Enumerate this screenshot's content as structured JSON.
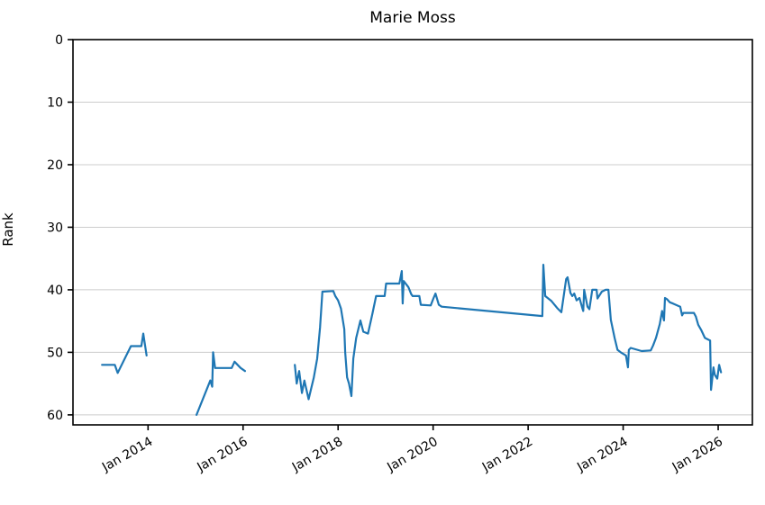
{
  "figure": {
    "title": "Marie Moss"
  },
  "chart_data": {
    "type": "line",
    "title": "Marie Moss",
    "xlabel": "",
    "ylabel": "Rank",
    "y_axis_inverted": true,
    "legend": "none",
    "grid": "horizontal-only",
    "grid_color": "#cccccc",
    "line_color": "#1f77b4",
    "spine_color": "#000000",
    "xlim": [
      2012.42,
      2026.72
    ],
    "ylim": [
      0,
      61.6
    ],
    "x_ticks": [
      {
        "year": 2014,
        "label": "Jan 2014"
      },
      {
        "year": 2016,
        "label": "Jan 2016"
      },
      {
        "year": 2018,
        "label": "Jan 2018"
      },
      {
        "year": 2020,
        "label": "Jan 2020"
      },
      {
        "year": 2022,
        "label": "Jan 2022"
      },
      {
        "year": 2024,
        "label": "Jan 2024"
      },
      {
        "year": 2026,
        "label": "Jan 2026"
      }
    ],
    "y_ticks": [
      {
        "value": 0,
        "label": "0"
      },
      {
        "value": 10,
        "label": "10"
      },
      {
        "value": 20,
        "label": "20"
      },
      {
        "value": 30,
        "label": "30"
      },
      {
        "value": 40,
        "label": "40"
      },
      {
        "value": 50,
        "label": "50"
      },
      {
        "value": 60,
        "label": "60"
      }
    ],
    "series": [
      {
        "name": "Marie Moss rank",
        "x_unit": "decimal-year",
        "segments": [
          [
            [
              2013.03,
              52
            ],
            [
              2013.3,
              52
            ],
            [
              2013.36,
              53.3
            ],
            [
              2013.64,
              49
            ],
            [
              2013.86,
              49
            ],
            [
              2013.9,
              47
            ],
            [
              2013.97,
              50.5
            ]
          ],
          [
            [
              2015.02,
              60
            ],
            [
              2015.31,
              54.5
            ],
            [
              2015.35,
              55.5
            ],
            [
              2015.37,
              50
            ],
            [
              2015.41,
              52.5
            ],
            [
              2015.76,
              52.5
            ],
            [
              2015.82,
              51.5
            ],
            [
              2015.95,
              52.5
            ],
            [
              2016.04,
              53
            ]
          ],
          [
            [
              2017.09,
              52
            ],
            [
              2017.13,
              55
            ],
            [
              2017.18,
              53
            ],
            [
              2017.24,
              56.5
            ],
            [
              2017.29,
              54.5
            ],
            [
              2017.38,
              57.5
            ],
            [
              2017.49,
              54
            ],
            [
              2017.56,
              51
            ],
            [
              2017.62,
              46
            ],
            [
              2017.67,
              40.3
            ],
            [
              2017.9,
              40.2
            ],
            [
              2017.94,
              41
            ],
            [
              2018.0,
              41.7
            ],
            [
              2018.06,
              43
            ],
            [
              2018.13,
              46.3
            ],
            [
              2018.15,
              50
            ],
            [
              2018.19,
              54
            ],
            [
              2018.23,
              55
            ],
            [
              2018.28,
              57
            ],
            [
              2018.32,
              51
            ],
            [
              2018.38,
              47.7
            ],
            [
              2018.47,
              44.9
            ],
            [
              2018.53,
              46.7
            ],
            [
              2018.63,
              47
            ],
            [
              2018.72,
              43.9
            ],
            [
              2018.8,
              41
            ],
            [
              2018.98,
              41
            ],
            [
              2019.01,
              39
            ],
            [
              2019.29,
              39
            ],
            [
              2019.34,
              37
            ],
            [
              2019.36,
              42.2
            ],
            [
              2019.38,
              38.6
            ],
            [
              2019.48,
              39.6
            ],
            [
              2019.54,
              40.7
            ],
            [
              2019.57,
              41
            ],
            [
              2019.71,
              41
            ],
            [
              2019.74,
              42.4
            ],
            [
              2019.95,
              42.5
            ],
            [
              2020.01,
              41.3
            ],
            [
              2020.05,
              40.6
            ],
            [
              2020.12,
              42.4
            ],
            [
              2020.18,
              42.7
            ],
            [
              2022.3,
              44.2
            ],
            [
              2022.32,
              36
            ],
            [
              2022.36,
              41
            ],
            [
              2022.49,
              41.8
            ],
            [
              2022.61,
              42.9
            ],
            [
              2022.7,
              43.6
            ],
            [
              2022.8,
              38.3
            ],
            [
              2022.83,
              38
            ],
            [
              2022.89,
              40.5
            ],
            [
              2022.93,
              41
            ],
            [
              2022.97,
              40.6
            ],
            [
              2023.02,
              41.7
            ],
            [
              2023.08,
              41.3
            ],
            [
              2023.14,
              42.9
            ],
            [
              2023.16,
              43.4
            ],
            [
              2023.18,
              40
            ],
            [
              2023.25,
              42.7
            ],
            [
              2023.29,
              43.1
            ],
            [
              2023.35,
              40
            ],
            [
              2023.44,
              40
            ],
            [
              2023.46,
              41.4
            ],
            [
              2023.55,
              40.3
            ],
            [
              2023.63,
              40
            ],
            [
              2023.69,
              40
            ],
            [
              2023.74,
              44.8
            ],
            [
              2023.82,
              47.7
            ],
            [
              2023.88,
              49.6
            ],
            [
              2023.95,
              50
            ],
            [
              2024.06,
              50.5
            ],
            [
              2024.1,
              52.4
            ],
            [
              2024.12,
              49.6
            ],
            [
              2024.16,
              49.3
            ],
            [
              2024.39,
              49.8
            ],
            [
              2024.58,
              49.7
            ],
            [
              2024.63,
              48.9
            ],
            [
              2024.69,
              47.7
            ],
            [
              2024.77,
              45.5
            ],
            [
              2024.82,
              43.4
            ],
            [
              2024.86,
              44.9
            ],
            [
              2024.88,
              41.3
            ],
            [
              2024.92,
              41.5
            ],
            [
              2024.98,
              42
            ],
            [
              2025.05,
              42.2
            ],
            [
              2025.2,
              42.7
            ],
            [
              2025.24,
              44.1
            ],
            [
              2025.27,
              43.7
            ],
            [
              2025.49,
              43.7
            ],
            [
              2025.53,
              44.3
            ],
            [
              2025.58,
              45.6
            ],
            [
              2025.64,
              46.4
            ],
            [
              2025.72,
              47.7
            ],
            [
              2025.8,
              48
            ],
            [
              2025.83,
              48.1
            ],
            [
              2025.85,
              56
            ],
            [
              2025.9,
              52.4
            ],
            [
              2025.93,
              53.6
            ],
            [
              2025.98,
              54.2
            ],
            [
              2026.02,
              52
            ],
            [
              2026.06,
              53.2
            ]
          ]
        ]
      }
    ]
  }
}
